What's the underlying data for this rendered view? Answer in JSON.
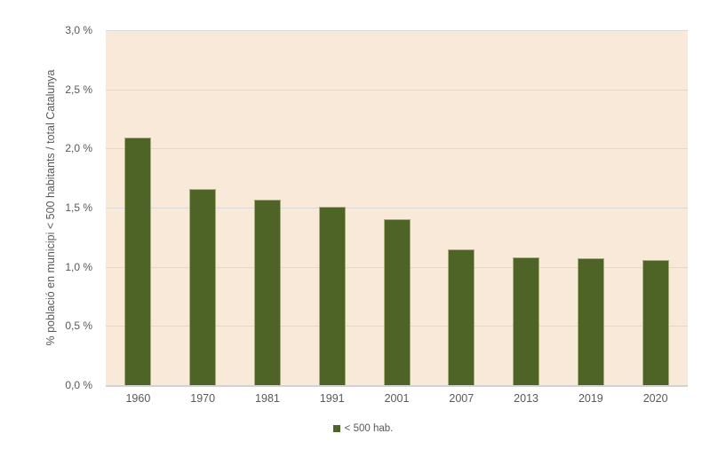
{
  "chart_data": {
    "type": "bar",
    "title": "",
    "categories": [
      "1960",
      "1970",
      "1981",
      "1991",
      "2001",
      "2007",
      "2013",
      "2019",
      "2020"
    ],
    "series": [
      {
        "name": "< 500 hab.",
        "values": [
          2.09,
          1.66,
          1.57,
          1.51,
          1.4,
          1.15,
          1.08,
          1.07,
          1.06
        ]
      }
    ],
    "xlabel": "",
    "ylabel": "% població en municipi < 500 habitants / total Catalunya",
    "ylim": [
      0,
      3.0
    ],
    "ytick_step": 0.5,
    "ytick_labels": [
      "0,0 %",
      "0,5 %",
      "1,0 %",
      "1,5 %",
      "2,0 %",
      "2,5 %",
      "3,0 %"
    ],
    "grid": true,
    "legend": {
      "position": "bottom",
      "entries": [
        "< 500 hab."
      ]
    },
    "colors": {
      "bar": "#4e6426",
      "plot_background": "#f9e9d8",
      "gridline": "#d9d9d9",
      "axis_line": "#d2d2d2",
      "text": "#595959",
      "background": "#ffffff"
    }
  }
}
